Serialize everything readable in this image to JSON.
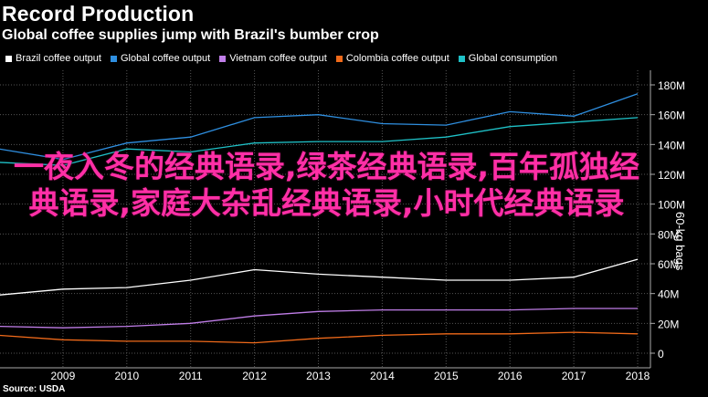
{
  "header": {
    "title": "Record Production",
    "subtitle": "Global coffee supplies jump with Brazil's bumber crop"
  },
  "overlay_text": "一夜入冬的经典语录,绿茶经典语录,百年孤独经典语录,家庭大杂乱经典语录,小时代经典语录",
  "source": "Source: USDA",
  "chart_data": {
    "type": "line",
    "title": "Record Production",
    "subtitle": "Global coffee supplies jump with Brazil's bumber crop",
    "ylabel": "60-kg bags",
    "xlabel": "",
    "x": [
      2008,
      2009,
      2010,
      2011,
      2012,
      2013,
      2014,
      2015,
      2016,
      2017,
      2018
    ],
    "xticks": [
      "2009",
      "2010",
      "2011",
      "2012",
      "2013",
      "2014",
      "2015",
      "2016",
      "2017",
      "2018"
    ],
    "ylim": [
      -6,
      188
    ],
    "yticks": [
      "0",
      "20M",
      "40M",
      "60M",
      "80M",
      "100M",
      "120M",
      "140M",
      "160M",
      "180M"
    ],
    "grid": true,
    "legend_position": "top",
    "series": [
      {
        "name": "Brazil coffee output",
        "color": "#ffffff",
        "values": [
          39,
          43,
          44,
          49,
          56,
          53,
          51,
          49,
          49,
          51,
          63
        ]
      },
      {
        "name": "Global coffee output",
        "color": "#2f8fe0",
        "values": [
          137,
          130,
          141,
          145,
          158,
          160,
          154,
          153,
          162,
          159,
          174
        ]
      },
      {
        "name": "Vietnam coffee output",
        "color": "#c07ee8",
        "values": [
          18,
          17,
          18,
          20,
          25,
          28,
          29,
          29,
          29,
          30,
          30
        ]
      },
      {
        "name": "Colombia coffee output",
        "color": "#f06a1a",
        "values": [
          12,
          9,
          8,
          8,
          7,
          10,
          12,
          13,
          13,
          14,
          13
        ]
      },
      {
        "name": "Global consumption",
        "color": "#1fc1c7",
        "values": [
          128,
          126,
          137,
          135,
          141,
          142,
          142,
          145,
          152,
          155,
          158
        ]
      }
    ]
  }
}
